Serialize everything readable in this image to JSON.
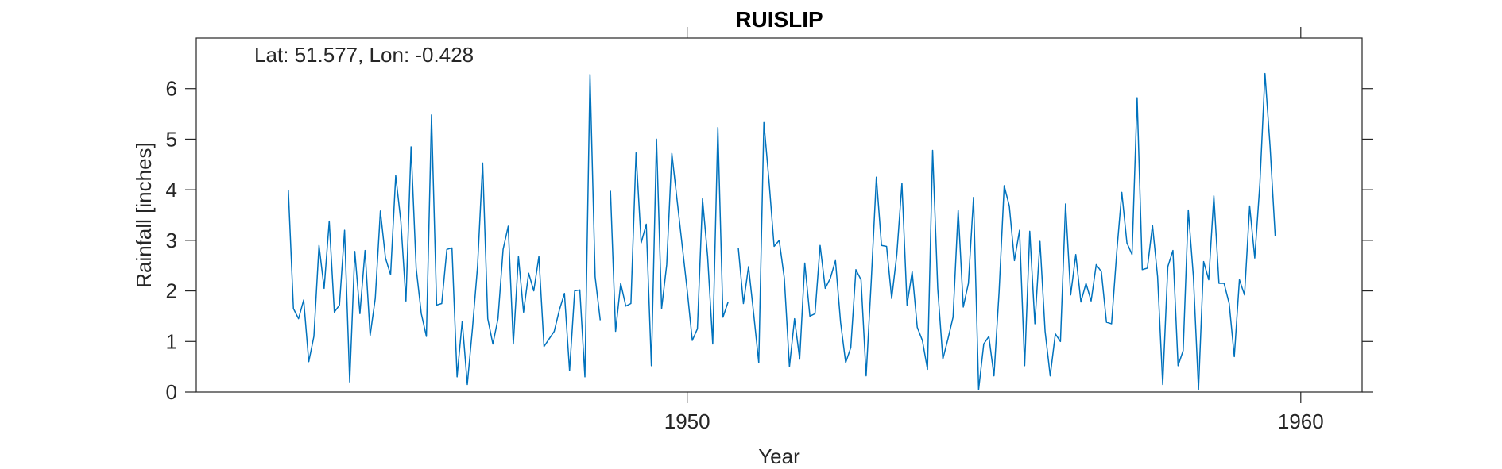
{
  "chart_data": {
    "type": "line",
    "title": "RUISLIP",
    "annotation": "Lat: 51.577, Lon: -0.428",
    "xlabel": "Year",
    "ylabel": "Rainfall [inches]",
    "xlim": [
      1942.0,
      1961.0
    ],
    "ylim": [
      0,
      7
    ],
    "x_ticks": [
      1950,
      1960
    ],
    "y_ticks": [
      0,
      1,
      2,
      3,
      4,
      5,
      6
    ],
    "grid": false,
    "series_color": "#0072BD",
    "x_start": 1943.5,
    "x_step": 0.0833333,
    "values": [
      4.0,
      1.65,
      1.45,
      1.82,
      0.6,
      1.1,
      2.9,
      2.05,
      3.38,
      1.58,
      1.72,
      3.2,
      0.2,
      2.78,
      1.55,
      2.8,
      1.12,
      1.85,
      3.58,
      2.65,
      2.32,
      4.28,
      3.38,
      1.8,
      4.85,
      2.45,
      1.55,
      1.1,
      5.48,
      1.72,
      1.75,
      2.82,
      2.85,
      0.3,
      1.4,
      0.15,
      1.25,
      2.48,
      4.53,
      1.45,
      0.95,
      1.45,
      2.82,
      3.28,
      0.95,
      2.68,
      1.58,
      2.35,
      2.0,
      2.68,
      0.9,
      1.05,
      1.2,
      1.62,
      1.95,
      0.42,
      2.0,
      2.02,
      0.3,
      6.28,
      2.28,
      1.42,
      null,
      3.98,
      1.2,
      2.15,
      1.7,
      1.75,
      4.73,
      2.95,
      3.32,
      0.52,
      5.0,
      1.65,
      2.52,
      4.72,
      3.82,
      2.92,
      2.02,
      1.02,
      1.25,
      3.82,
      2.68,
      0.95,
      5.23,
      1.48,
      1.78,
      null,
      2.85,
      1.75,
      2.48,
      1.55,
      0.58,
      5.33,
      4.18,
      2.88,
      3.0,
      2.25,
      0.5,
      1.45,
      0.65,
      2.55,
      1.5,
      1.55,
      2.9,
      2.05,
      2.25,
      2.6,
      1.38,
      0.58,
      0.88,
      2.42,
      2.22,
      0.32,
      2.2,
      4.25,
      2.9,
      2.88,
      1.85,
      2.72,
      4.13,
      1.72,
      2.38,
      1.28,
      1.02,
      0.45,
      4.78,
      2.05,
      0.65,
      1.05,
      1.48,
      3.6,
      1.68,
      2.15,
      3.85,
      0.05,
      0.95,
      1.1,
      0.32,
      1.98,
      4.08,
      3.68,
      2.6,
      3.2,
      0.52,
      3.18,
      1.35,
      2.98,
      1.2,
      0.32,
      1.15,
      1.0,
      3.72,
      1.92,
      2.72,
      1.78,
      2.15,
      1.8,
      2.52,
      2.38,
      1.38,
      1.35,
      2.75,
      3.95,
      2.95,
      2.72,
      5.82,
      2.42,
      2.45,
      3.3,
      2.28,
      0.15,
      2.48,
      2.8,
      0.52,
      0.82,
      3.6,
      2.28,
      0.05,
      2.58,
      2.22,
      3.88,
      2.15,
      2.15,
      1.75,
      0.7,
      2.22,
      1.92,
      3.68,
      2.65,
      4.12,
      6.3,
      4.85,
      3.08
    ]
  }
}
